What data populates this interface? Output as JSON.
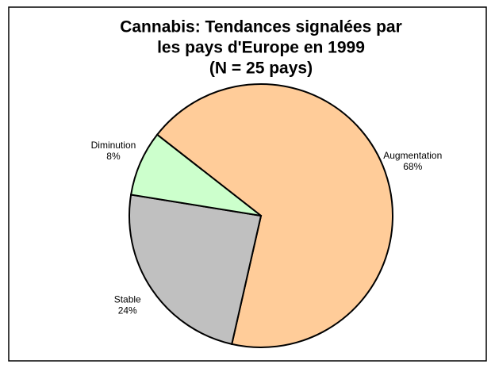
{
  "chart_data": {
    "type": "pie",
    "title": [
      "Cannabis: Tendances signalées par",
      "les pays d'Europe en 1999",
      "(N = 25 pays)"
    ],
    "categories": [
      "Augmentation",
      "Stable",
      "Diminution"
    ],
    "values": [
      68,
      24,
      8
    ],
    "value_labels": [
      "68%",
      "24%",
      "8%"
    ],
    "colors": [
      "#ffcc99",
      "#c0c0c0",
      "#ccffcc"
    ]
  }
}
